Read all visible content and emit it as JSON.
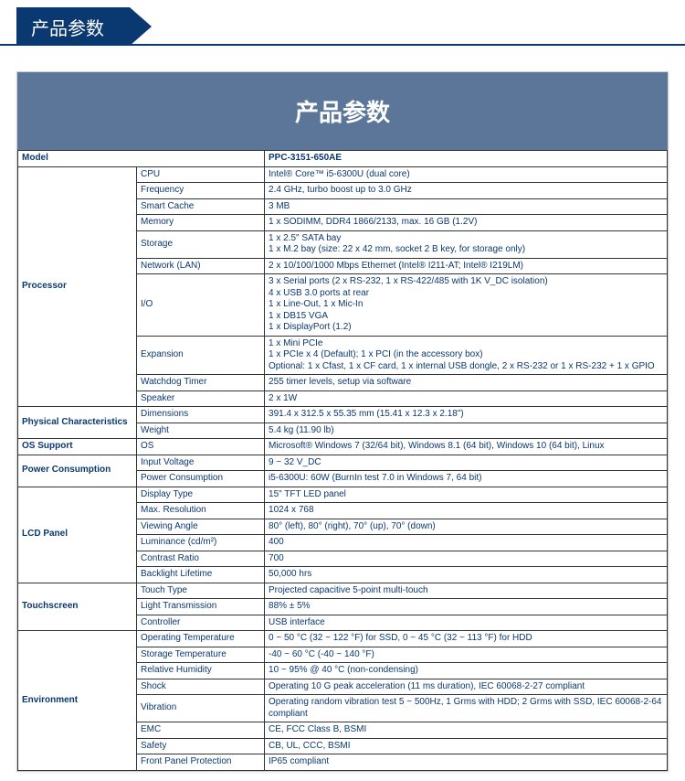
{
  "colors": {
    "brand": "#0a3870",
    "banner": "#5b7698"
  },
  "tab_label": "产品参数",
  "card_title": "产品参数",
  "headers": {
    "model": "Model",
    "product": "PPC-3151-650AE"
  },
  "groups": [
    {
      "name": "Processor",
      "rows": [
        {
          "label": "CPU",
          "value": "Intel® Core™ i5-6300U (dual core)"
        },
        {
          "label": "Frequency",
          "value": "2.4 GHz, turbo boost up to 3.0 GHz"
        },
        {
          "label": "Smart Cache",
          "value": "3 MB"
        },
        {
          "label": "Memory",
          "value": "1 x SODIMM, DDR4 1866/2133, max. 16 GB (1.2V)"
        },
        {
          "label": "Storage",
          "value": "1 x 2.5\" SATA bay\n1 x M.2 bay (size: 22 x 42 mm, socket 2 B key, for storage only)"
        },
        {
          "label": "Network (LAN)",
          "value": "2 x 10/100/1000 Mbps Ethernet (Intel® I211-AT; Intel® I219LM)"
        },
        {
          "label": "I/O",
          "value": "3 x Serial ports (2 x RS-232, 1 x RS-422/485 with 1K V_DC isolation)\n4 x USB 3.0 ports at rear\n1 x Line-Out, 1 x Mic-In\n1 x DB15 VGA\n1 x DisplayPort (1.2)"
        },
        {
          "label": "Expansion",
          "value": "1 x Mini PCIe\n1 x PCIe x 4 (Default); 1 x PCI (in the accessory box)\nOptional: 1 x Cfast, 1 x CF card, 1 x internal USB dongle, 2 x RS-232 or 1 x RS-232 + 1 x GPIO"
        },
        {
          "label": "Watchdog Timer",
          "value": "255 timer levels, setup via software"
        },
        {
          "label": "Speaker",
          "value": "2 x 1W"
        }
      ]
    },
    {
      "name": "Physical Characteristics",
      "rows": [
        {
          "label": "Dimensions",
          "value": "391.4 x 312.5 x 55.35 mm (15.41 x 12.3 x 2.18\")"
        },
        {
          "label": "Weight",
          "value": "5.4 kg (11.90 lb)"
        }
      ]
    },
    {
      "name": "OS Support",
      "rows": [
        {
          "label": "OS",
          "value": "Microsoft® Windows 7 (32/64 bit), Windows 8.1 (64 bit), Windows 10 (64 bit), Linux"
        }
      ]
    },
    {
      "name": "Power Consumption",
      "rows": [
        {
          "label": "Input Voltage",
          "value": "9 ~ 32 V_DC"
        },
        {
          "label": "Power Consumption",
          "value": "i5-6300U: 60W (BurnIn test 7.0 in Windows 7, 64 bit)"
        }
      ]
    },
    {
      "name": "LCD Panel",
      "rows": [
        {
          "label": "Display Type",
          "value": "15\" TFT LED panel"
        },
        {
          "label": "Max. Resolution",
          "value": "1024 x 768"
        },
        {
          "label": "Viewing Angle",
          "value": "80° (left), 80° (right), 70° (up), 70° (down)"
        },
        {
          "label": "Luminance (cd/m²)",
          "value": "400"
        },
        {
          "label": "Contrast Ratio",
          "value": "700"
        },
        {
          "label": "Backlight Lifetime",
          "value": "50,000 hrs"
        }
      ]
    },
    {
      "name": "Touchscreen",
      "rows": [
        {
          "label": "Touch Type",
          "value": "Projected capacitive 5-point multi-touch"
        },
        {
          "label": "Light Transmission",
          "value": "88% ± 5%"
        },
        {
          "label": "Controller",
          "value": "USB interface"
        }
      ]
    },
    {
      "name": "Environment",
      "rows": [
        {
          "label": "Operating Temperature",
          "value": "0 ~ 50 °C (32 ~ 122 °F) for SSD, 0 ~ 45 °C (32 ~ 113 °F) for HDD"
        },
        {
          "label": "Storage Temperature",
          "value": "-40 ~ 60 °C (-40 ~ 140 °F)"
        },
        {
          "label": "Relative Humidity",
          "value": "10 ~ 95% @ 40 °C (non-condensing)"
        },
        {
          "label": "Shock",
          "value": "Operating 10 G peak acceleration (11 ms duration), IEC 60068-2-27 compliant"
        },
        {
          "label": "Vibration",
          "value": "Operating random vibration test 5 ~ 500Hz, 1 Grms with HDD; 2 Grms with SSD, IEC 60068-2-64 compliant"
        },
        {
          "label": "EMC",
          "value": "CE, FCC Class B, BSMI"
        },
        {
          "label": "Safety",
          "value": "CB, UL, CCC, BSMI"
        },
        {
          "label": "Front Panel Protection",
          "value": "IP65 compliant"
        }
      ]
    }
  ]
}
